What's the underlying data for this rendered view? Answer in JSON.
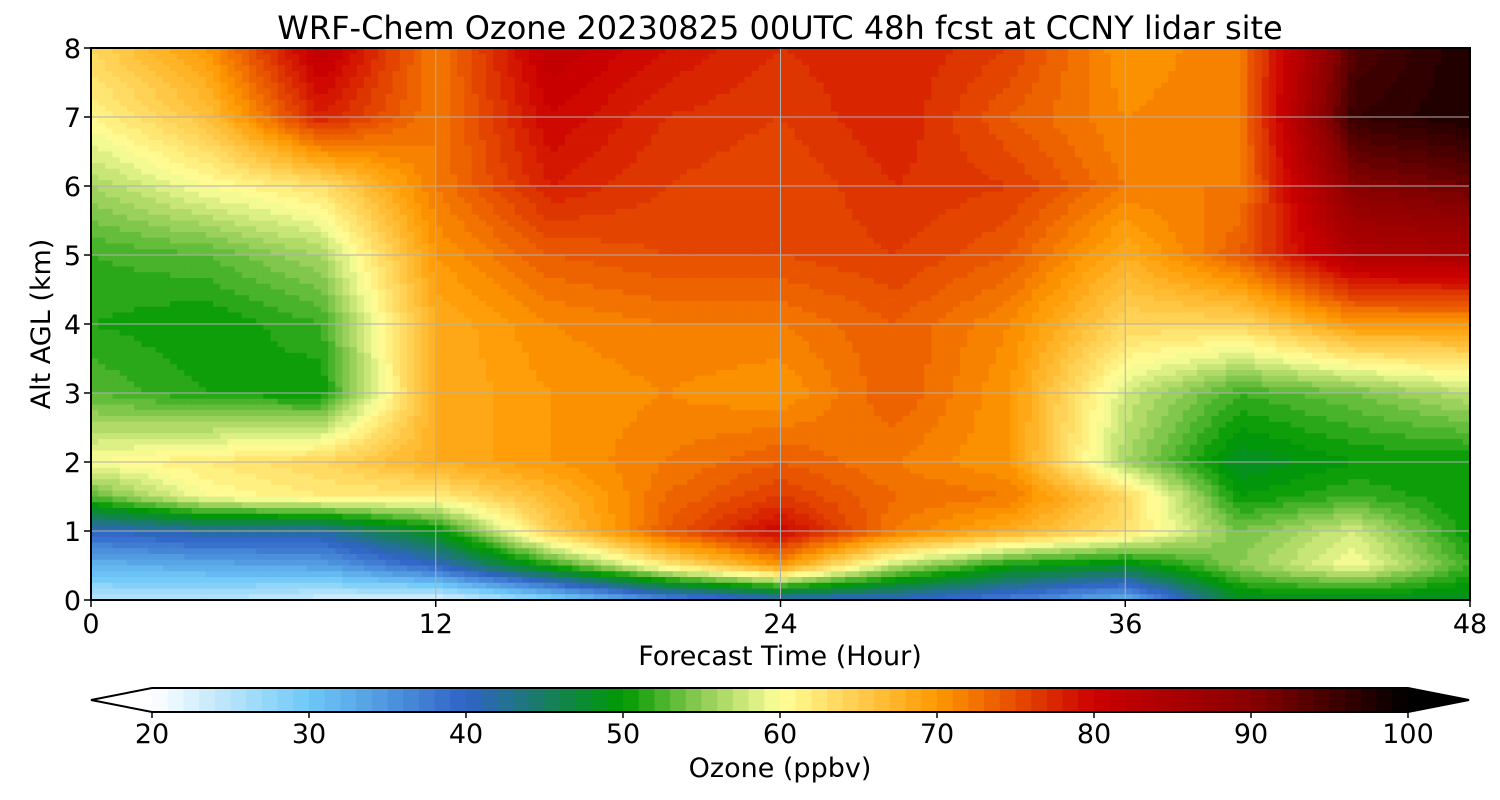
{
  "chart_data": {
    "type": "heatmap",
    "title": "WRF-Chem Ozone  20230825 00UTC 48h fcst at CCNY lidar site",
    "xlabel": "Forecast Time (Hour)",
    "ylabel": "Alt AGL (km)",
    "xlim": [
      0,
      48
    ],
    "ylim": [
      0,
      8
    ],
    "x_ticks": [
      0,
      12,
      24,
      36,
      48
    ],
    "y_ticks": [
      0,
      1,
      2,
      3,
      4,
      5,
      6,
      7,
      8
    ],
    "grid": true,
    "z": {
      "x": [
        0,
        4,
        8,
        12,
        16,
        20,
        24,
        28,
        32,
        36,
        40,
        44,
        48
      ],
      "y": [
        0,
        0.5,
        1,
        1.5,
        2,
        3,
        4,
        5,
        6,
        7,
        8
      ],
      "values": [
        [
          25,
          25,
          23,
          22,
          28,
          36,
          40,
          40,
          37,
          32,
          48,
          48,
          48
        ],
        [
          32,
          33,
          34,
          40,
          51,
          62,
          70,
          57,
          50,
          48,
          55,
          60,
          52
        ],
        [
          40,
          42,
          42,
          49,
          65,
          74,
          80,
          72,
          68,
          63,
          54,
          58,
          50
        ],
        [
          53,
          60,
          62,
          62,
          67,
          73,
          76,
          73,
          72,
          64,
          50,
          52,
          50
        ],
        [
          60,
          62,
          64,
          68,
          70,
          72,
          74,
          72,
          70,
          56,
          48,
          50,
          50
        ],
        [
          53,
          51,
          50,
          68,
          70,
          71,
          70,
          74,
          70,
          58,
          52,
          54,
          57
        ],
        [
          51,
          50,
          52,
          68,
          71,
          72,
          72,
          74,
          71,
          64,
          64,
          70,
          70
        ],
        [
          52,
          53,
          56,
          70,
          74,
          75,
          75,
          76,
          74,
          68,
          74,
          84,
          85
        ],
        [
          56,
          60,
          63,
          72,
          78,
          76,
          75,
          77,
          76,
          72,
          72,
          90,
          92
        ],
        [
          61,
          66,
          78,
          72,
          80,
          77,
          76,
          78,
          74,
          71,
          72,
          96,
          98
        ],
        [
          64,
          70,
          82,
          72,
          82,
          79,
          77,
          78,
          76,
          70,
          72,
          94,
          98
        ]
      ]
    },
    "colorbar": {
      "label": "Ozone  (ppbv)",
      "min": 20,
      "max": 100,
      "step": 1,
      "ticks": [
        20,
        30,
        40,
        50,
        60,
        70,
        80,
        90,
        100
      ],
      "extend": "both",
      "orientation": "horizontal",
      "placement": "bottom"
    },
    "colormap": [
      [
        20,
        "#ffffff"
      ],
      [
        30,
        "#6ec8f7"
      ],
      [
        40,
        "#2f63c6"
      ],
      [
        50,
        "#009900"
      ],
      [
        55,
        "#8fcc55"
      ],
      [
        60,
        "#ffff99"
      ],
      [
        70,
        "#ff9900"
      ],
      [
        80,
        "#cc0000"
      ],
      [
        90,
        "#880000"
      ],
      [
        100,
        "#000000"
      ]
    ],
    "grid_color": "#b0b0b0"
  }
}
